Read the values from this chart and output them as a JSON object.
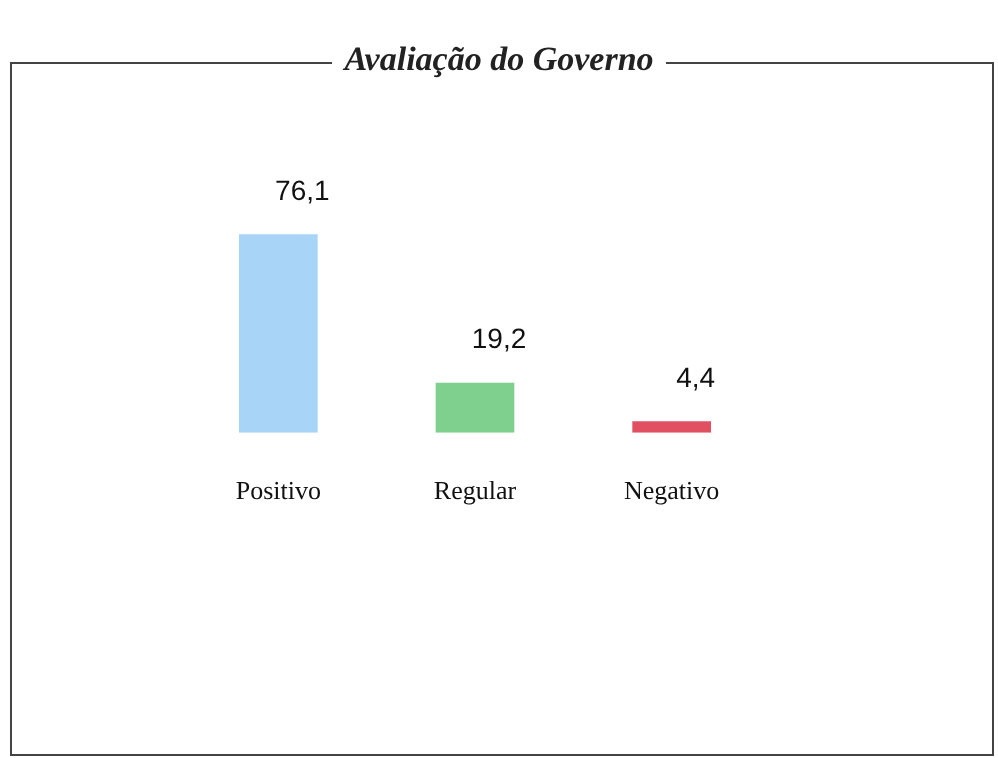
{
  "chart_data": {
    "type": "bar",
    "title": "Avaliação do Governo",
    "categories": [
      "Positivo",
      "Regular",
      "Negativo"
    ],
    "values": [
      76.1,
      19.2,
      4.4
    ],
    "colors": [
      "#a8d4f8",
      "#7fd08f",
      "#e05060"
    ],
    "value_labels": [
      "76,1",
      "19,2",
      "4,4"
    ],
    "grid": false,
    "legend": false
  }
}
